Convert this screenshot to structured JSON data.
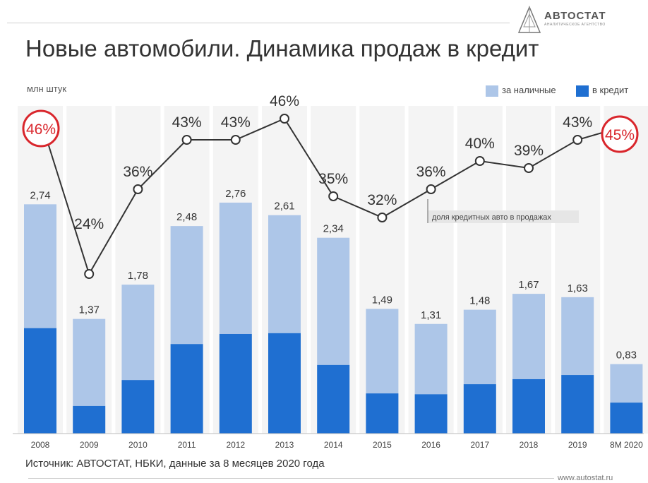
{
  "header": {
    "title": "Новые автомобили. Динамика продаж в кредит",
    "unit": "млн штук"
  },
  "brand": {
    "name": "АВТОСТАТ",
    "tagline": "АНАЛИТИЧЕСКОЕ АГЕНТСТВО",
    "site": "www.autostat.ru"
  },
  "legend": {
    "cash": "за наличные",
    "credit": "в кредит"
  },
  "footer": {
    "source": "Источник: АВТОСТАТ, НБКИ, данные за 8 месяцев 2020 года"
  },
  "annotation": "доля кредитных авто в продажах",
  "colors": {
    "cash": "#adc6e8",
    "credit": "#1f6fd1",
    "line": "#333333",
    "highlight": "#d9262c",
    "label_bg": "#e6e6e6"
  },
  "chart_data": {
    "type": "bar",
    "stacked": true,
    "categories": [
      "2008",
      "2009",
      "2010",
      "2011",
      "2012",
      "2013",
      "2014",
      "2015",
      "2016",
      "2017",
      "2018",
      "2019",
      "8M 2020"
    ],
    "totals": [
      2.74,
      1.37,
      1.78,
      2.48,
      2.76,
      2.61,
      2.34,
      1.49,
      1.31,
      1.48,
      1.67,
      1.63,
      0.83
    ],
    "total_labels": [
      "2,74",
      "1,37",
      "1,78",
      "2,48",
      "2,76",
      "2,61",
      "2,34",
      "1,49",
      "1,31",
      "1,48",
      "1,67",
      "1,63",
      "0,83"
    ],
    "series": [
      {
        "name": "в кредит",
        "values": [
          1.26,
          0.33,
          0.64,
          1.07,
          1.19,
          1.2,
          0.82,
          0.48,
          0.47,
          0.59,
          0.65,
          0.7,
          0.37
        ]
      },
      {
        "name": "за наличные",
        "values": [
          1.48,
          1.04,
          1.14,
          1.41,
          1.57,
          1.41,
          1.52,
          1.01,
          0.84,
          0.89,
          1.02,
          0.93,
          0.46
        ]
      }
    ],
    "line": {
      "name": "доля кредитных авто в продажах",
      "values": [
        46,
        24,
        36,
        43,
        43,
        46,
        35,
        32,
        36,
        40,
        39,
        43,
        45
      ],
      "labels": [
        "46%",
        "24%",
        "36%",
        "43%",
        "43%",
        "46%",
        "35%",
        "32%",
        "36%",
        "40%",
        "39%",
        "43%",
        "45%"
      ],
      "highlighted": [
        0,
        12
      ]
    },
    "ylabel": "млн штук",
    "ylim": [
      0,
      2.76
    ],
    "grid": false,
    "legend_position": "top-right"
  }
}
